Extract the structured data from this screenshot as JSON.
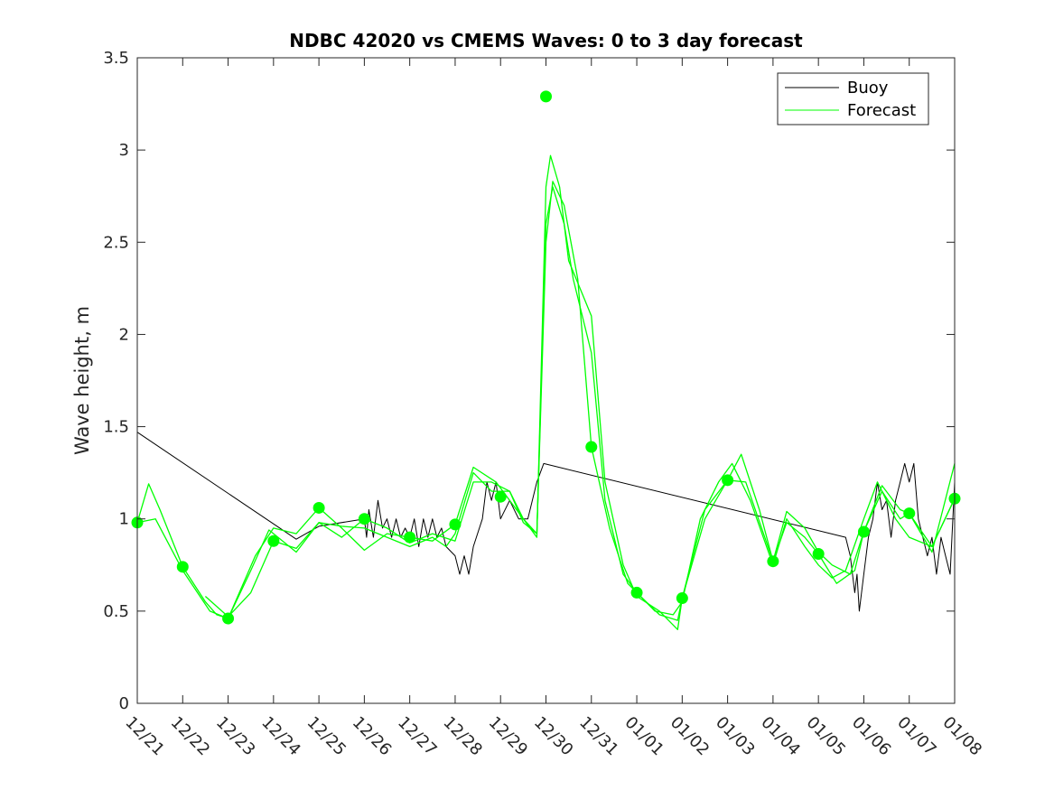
{
  "chart_data": {
    "type": "line",
    "title": "NDBC 42020 vs CMEMS Waves: 0 to 3 day forecast",
    "xlabel": "",
    "ylabel": "Wave height, m",
    "ylim": [
      0,
      3.5
    ],
    "xlim": [
      0,
      18
    ],
    "x_unit": "days since 12/21",
    "yticks": [
      "0",
      "0.5",
      "1",
      "1.5",
      "2",
      "2.5",
      "3",
      "3.5"
    ],
    "xticks": [
      "12/21",
      "12/22",
      "12/23",
      "12/24",
      "12/25",
      "12/26",
      "12/27",
      "12/28",
      "12/29",
      "12/30",
      "12/31",
      "01/01",
      "01/02",
      "01/03",
      "01/04",
      "01/05",
      "01/06",
      "01/07",
      "01/08"
    ],
    "legend": {
      "position": "top-right",
      "entries": [
        "Buoy",
        "Forecast"
      ]
    },
    "colors": {
      "buoy": "#000000",
      "forecast": "#00ff00",
      "axis": "#262626"
    },
    "series": [
      {
        "name": "Buoy",
        "color": "#000000",
        "points": [
          [
            0,
            1.47
          ],
          [
            3.5,
            0.89
          ],
          [
            4.0,
            0.96
          ],
          [
            5.0,
            1.0
          ],
          [
            5.05,
            0.9
          ],
          [
            5.1,
            1.05
          ],
          [
            5.2,
            0.9
          ],
          [
            5.3,
            1.1
          ],
          [
            5.4,
            0.95
          ],
          [
            5.5,
            1.0
          ],
          [
            5.6,
            0.9
          ],
          [
            5.7,
            1.0
          ],
          [
            5.8,
            0.9
          ],
          [
            5.9,
            0.95
          ],
          [
            6.0,
            0.9
          ],
          [
            6.1,
            1.0
          ],
          [
            6.2,
            0.85
          ],
          [
            6.3,
            1.0
          ],
          [
            6.4,
            0.9
          ],
          [
            6.5,
            1.0
          ],
          [
            6.6,
            0.9
          ],
          [
            6.7,
            0.95
          ],
          [
            6.8,
            0.85
          ],
          [
            7.0,
            0.8
          ],
          [
            7.1,
            0.7
          ],
          [
            7.2,
            0.8
          ],
          [
            7.3,
            0.7
          ],
          [
            7.4,
            0.85
          ],
          [
            7.6,
            1.0
          ],
          [
            7.7,
            1.2
          ],
          [
            7.8,
            1.1
          ],
          [
            7.9,
            1.2
          ],
          [
            8.0,
            1.0
          ],
          [
            8.2,
            1.1
          ],
          [
            8.4,
            1.0
          ],
          [
            8.6,
            1.0
          ],
          [
            8.8,
            1.2
          ],
          [
            8.95,
            1.3
          ],
          [
            15.6,
            0.9
          ],
          [
            15.7,
            0.8
          ],
          [
            15.8,
            0.6
          ],
          [
            15.85,
            0.7
          ],
          [
            15.9,
            0.5
          ],
          [
            16.0,
            0.7
          ],
          [
            16.1,
            0.9
          ],
          [
            16.2,
            1.0
          ],
          [
            16.3,
            1.2
          ],
          [
            16.4,
            1.05
          ],
          [
            16.5,
            1.1
          ],
          [
            16.6,
            0.9
          ],
          [
            16.7,
            1.1
          ],
          [
            16.8,
            1.2
          ],
          [
            16.9,
            1.3
          ],
          [
            17.0,
            1.2
          ],
          [
            17.1,
            1.3
          ],
          [
            17.2,
            1.0
          ],
          [
            17.3,
            0.9
          ],
          [
            17.4,
            0.8
          ],
          [
            17.5,
            0.9
          ],
          [
            17.6,
            0.7
          ],
          [
            17.7,
            0.9
          ],
          [
            17.8,
            0.8
          ],
          [
            17.9,
            0.7
          ],
          [
            18.0,
            1.2
          ]
        ]
      },
      {
        "name": "Forecast",
        "color": "#00ff00",
        "points": [
          [
            0,
            0.98
          ],
          [
            0.25,
            1.19
          ],
          [
            0.5,
            1.05
          ],
          [
            1.0,
            0.74
          ],
          [
            1.5,
            0.55
          ],
          [
            1.75,
            0.48
          ],
          [
            2.0,
            0.46
          ],
          [
            2.5,
            0.72
          ],
          [
            2.9,
            0.94
          ],
          [
            3.5,
            0.82
          ],
          [
            4.0,
            0.98
          ],
          [
            4.5,
            0.96
          ],
          [
            5.0,
            0.95
          ],
          [
            5.5,
            0.9
          ],
          [
            6.0,
            0.85
          ],
          [
            6.5,
            0.9
          ],
          [
            6.8,
            0.85
          ],
          [
            7.0,
            0.92
          ],
          [
            7.4,
            1.25
          ],
          [
            7.8,
            1.15
          ],
          [
            8.2,
            1.15
          ],
          [
            8.5,
            1.0
          ],
          [
            8.8,
            0.92
          ],
          [
            9.0,
            2.6
          ],
          [
            9.15,
            2.8
          ],
          [
            9.4,
            2.6
          ],
          [
            9.6,
            2.3
          ],
          [
            10.0,
            1.9
          ],
          [
            10.3,
            1.1
          ],
          [
            10.7,
            0.7
          ],
          [
            11.0,
            0.6
          ],
          [
            11.4,
            0.5
          ],
          [
            11.8,
            0.48
          ],
          [
            12.0,
            0.55
          ],
          [
            12.4,
            1.0
          ],
          [
            12.8,
            1.2
          ],
          [
            13.1,
            1.3
          ],
          [
            13.5,
            1.1
          ],
          [
            14.0,
            0.75
          ],
          [
            14.3,
            1.0
          ],
          [
            14.7,
            0.85
          ],
          [
            15.0,
            0.75
          ],
          [
            15.3,
            0.68
          ],
          [
            15.6,
            0.72
          ],
          [
            16.0,
            1.0
          ],
          [
            16.3,
            1.2
          ],
          [
            16.7,
            1.0
          ],
          [
            17.0,
            0.9
          ],
          [
            17.5,
            0.85
          ],
          [
            18.0,
            1.11
          ]
        ]
      },
      {
        "name": "Forecast",
        "color": "#00ff00",
        "points": [
          [
            0,
            0.98
          ],
          [
            0.4,
            1.0
          ],
          [
            1.0,
            0.72
          ],
          [
            1.6,
            0.5
          ],
          [
            2.0,
            0.46
          ],
          [
            2.6,
            0.8
          ],
          [
            3.0,
            0.95
          ],
          [
            3.5,
            0.92
          ],
          [
            4.0,
            1.06
          ],
          [
            4.5,
            0.95
          ],
          [
            5.0,
            0.83
          ],
          [
            5.5,
            0.92
          ],
          [
            6.0,
            0.9
          ],
          [
            6.5,
            0.88
          ],
          [
            7.0,
            0.97
          ],
          [
            7.4,
            1.28
          ],
          [
            7.9,
            1.2
          ],
          [
            8.2,
            1.1
          ],
          [
            8.5,
            1.0
          ],
          [
            8.8,
            0.9
          ],
          [
            9.0,
            2.8
          ],
          [
            9.1,
            2.97
          ],
          [
            9.3,
            2.8
          ],
          [
            9.5,
            2.4
          ],
          [
            10.0,
            2.1
          ],
          [
            10.3,
            1.2
          ],
          [
            10.7,
            0.75
          ],
          [
            11.0,
            0.58
          ],
          [
            11.5,
            0.5
          ],
          [
            11.9,
            0.4
          ],
          [
            12.0,
            0.57
          ],
          [
            12.5,
            1.05
          ],
          [
            13.0,
            1.21
          ],
          [
            13.3,
            1.35
          ],
          [
            13.7,
            1.05
          ],
          [
            14.0,
            0.77
          ],
          [
            14.3,
            1.04
          ],
          [
            14.7,
            0.95
          ],
          [
            15.0,
            0.82
          ],
          [
            15.3,
            0.75
          ],
          [
            15.7,
            0.7
          ],
          [
            16.0,
            0.93
          ],
          [
            16.4,
            1.18
          ],
          [
            16.8,
            1.05
          ],
          [
            17.0,
            1.03
          ],
          [
            17.5,
            0.82
          ],
          [
            18.0,
            1.3
          ]
        ]
      },
      {
        "name": "Forecast",
        "color": "#00ff00",
        "points": [
          [
            1.5,
            0.58
          ],
          [
            2.0,
            0.47
          ],
          [
            2.5,
            0.6
          ],
          [
            3.0,
            0.88
          ],
          [
            3.5,
            0.84
          ],
          [
            4.0,
            0.98
          ],
          [
            4.5,
            0.9
          ],
          [
            5.0,
            1.0
          ],
          [
            5.5,
            0.95
          ],
          [
            6.0,
            0.87
          ],
          [
            6.5,
            0.92
          ],
          [
            7.0,
            0.88
          ],
          [
            7.4,
            1.2
          ],
          [
            7.8,
            1.2
          ],
          [
            8.2,
            1.15
          ],
          [
            8.5,
            0.98
          ],
          [
            8.8,
            0.92
          ],
          [
            9.0,
            2.5
          ],
          [
            9.15,
            2.83
          ],
          [
            9.4,
            2.7
          ],
          [
            9.7,
            2.3
          ],
          [
            10.0,
            1.39
          ],
          [
            10.4,
            0.95
          ],
          [
            10.8,
            0.65
          ],
          [
            11.0,
            0.6
          ],
          [
            11.5,
            0.48
          ],
          [
            11.9,
            0.45
          ],
          [
            12.0,
            0.57
          ],
          [
            12.5,
            1.0
          ],
          [
            13.0,
            1.21
          ],
          [
            13.4,
            1.2
          ],
          [
            14.0,
            0.77
          ],
          [
            14.3,
            0.98
          ],
          [
            14.7,
            0.9
          ],
          [
            15.0,
            0.81
          ],
          [
            15.4,
            0.65
          ],
          [
            15.8,
            0.72
          ],
          [
            16.0,
            0.93
          ],
          [
            16.4,
            1.15
          ],
          [
            16.8,
            1.0
          ],
          [
            17.0,
            1.03
          ],
          [
            17.5,
            0.85
          ],
          [
            18.0,
            1.11
          ]
        ]
      }
    ],
    "markers": {
      "name": "Forecast start points",
      "color": "#00ff00",
      "points": [
        [
          0,
          0.98
        ],
        [
          1,
          0.74
        ],
        [
          2,
          0.46
        ],
        [
          3,
          0.88
        ],
        [
          4,
          1.06
        ],
        [
          5,
          1.0
        ],
        [
          6,
          0.9
        ],
        [
          7,
          0.97
        ],
        [
          8,
          1.12
        ],
        [
          9,
          3.29
        ],
        [
          10,
          1.39
        ],
        [
          11,
          0.6
        ],
        [
          12,
          0.57
        ],
        [
          13,
          1.21
        ],
        [
          14,
          0.77
        ],
        [
          15,
          0.81
        ],
        [
          16,
          0.93
        ],
        [
          17,
          1.03
        ],
        [
          18,
          1.11
        ]
      ]
    }
  }
}
